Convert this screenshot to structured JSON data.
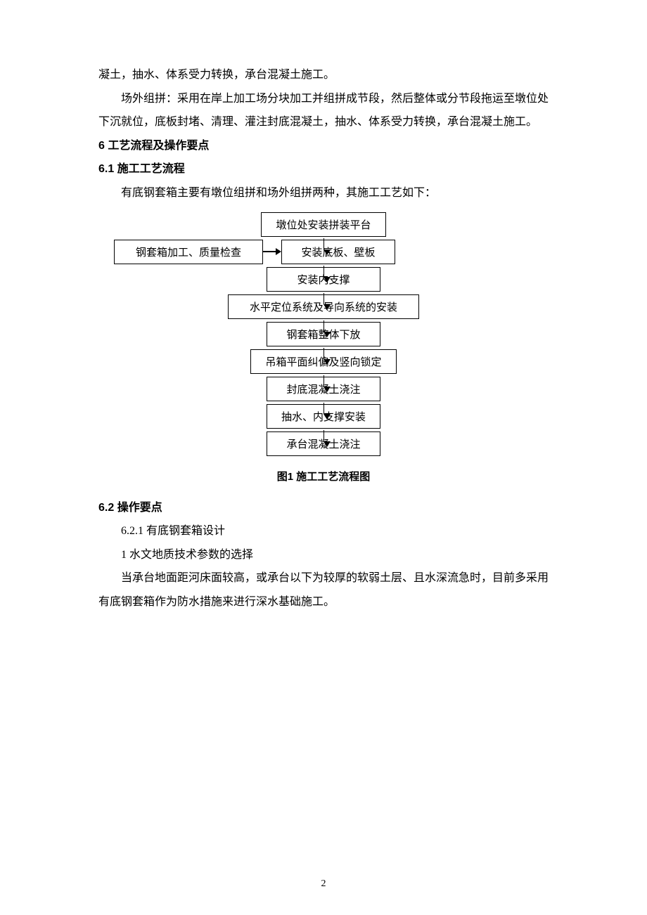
{
  "para1": "凝土，抽水、体系受力转换，承台混凝土施工。",
  "para2": "场外组拼：采用在岸上加工场分块加工并组拼成节段，然后整体或分节段拖运至墩位处下沉就位，底板封堵、清理、灌注封底混凝土，抽水、体系受力转换，承台混凝土施工。",
  "heading6": "6 工艺流程及操作要点",
  "heading6_1": "6.1 施工工艺流程",
  "para3": "有底钢套箱主要有墩位组拼和场外组拼两种，其施工工艺如下：",
  "flowchart": {
    "type": "flowchart",
    "box_border_color": "#000000",
    "background_color": "#ffffff",
    "font_size": 15,
    "arrow_color": "#000000",
    "side_node": "钢套箱加工、质量检查",
    "nodes": [
      "墩位处安装拼装平台",
      "安装底板、壁板",
      "安装内支撑",
      "水平定位系统及导向系统的安装",
      "钢套箱整体下放",
      "吊箱平面纠偏及竖向锁定",
      "封底混凝土浇注",
      "抽水、内支撑安装",
      "承台混凝土浇注"
    ]
  },
  "caption": "图1 施工工艺流程图",
  "heading6_2": "6.2 操作要点",
  "para4": "6.2.1 有底钢套箱设计",
  "para5": "1 水文地质技术参数的选择",
  "para6": "当承台地面距河床面较高，或承台以下为较厚的软弱土层、且水深流急时，目前多采用有底钢套箱作为防水措施来进行深水基础施工。",
  "page_number": "2"
}
